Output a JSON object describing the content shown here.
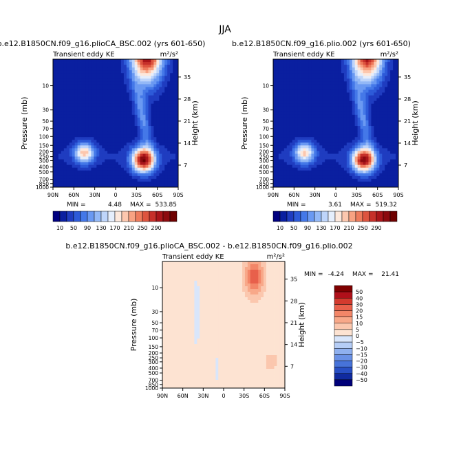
{
  "page_title": "JJA",
  "chart_data": [
    {
      "type": "heatmap",
      "id": "panel1",
      "title": "b.e12.B1850CN.f09_g16.plioCA_BSC.002 (yrs 601-650)",
      "subtitle_left": "Transient eddy KE",
      "units": "m²/s²",
      "xlabel": "",
      "ylabel": "Pressure (mb)",
      "ylabel_right": "Height (km)",
      "x_ticks": [
        "90N",
        "60N",
        "30N",
        "0",
        "30S",
        "60S",
        "90S"
      ],
      "y_ticks": [
        "10",
        "30",
        "50",
        "70",
        "100",
        "150",
        "200",
        "250",
        "300",
        "400",
        "500",
        "700",
        "850",
        "1000"
      ],
      "y_ticks_right": [
        "35",
        "28",
        "21",
        "14",
        "7"
      ],
      "min_label": "MIN =",
      "min_value": "4.48",
      "max_label": "MAX =",
      "max_value": "533.85",
      "features": [
        {
          "lat": -45,
          "p": 2,
          "value": 320,
          "sx": 22,
          "sy": 1.4
        },
        {
          "lat": -40,
          "p": 290,
          "value": 300,
          "sx": 16,
          "sy": 0.55
        },
        {
          "lat": 45,
          "p": 210,
          "value": 175,
          "sx": 14,
          "sy": 0.45
        }
      ]
    },
    {
      "type": "heatmap",
      "id": "panel2",
      "title": "b.e12.B1850CN.f09_g16.plio.002 (yrs 601-650)",
      "subtitle_left": "Transient eddy KE",
      "units": "m²/s²",
      "xlabel": "",
      "ylabel": "Pressure (mb)",
      "ylabel_right": "Height (km)",
      "x_ticks": [
        "90N",
        "60N",
        "30N",
        "0",
        "30S",
        "60S",
        "90S"
      ],
      "y_ticks": [
        "10",
        "30",
        "50",
        "70",
        "100",
        "150",
        "200",
        "250",
        "300",
        "400",
        "500",
        "700",
        "850",
        "1000"
      ],
      "y_ticks_right": [
        "35",
        "28",
        "21",
        "14",
        "7"
      ],
      "min_label": "MIN =",
      "min_value": "3.61",
      "max_label": "MAX =",
      "max_value": "519.32",
      "features": [
        {
          "lat": -45,
          "p": 2,
          "value": 310,
          "sx": 22,
          "sy": 1.4
        },
        {
          "lat": -40,
          "p": 290,
          "value": 290,
          "sx": 16,
          "sy": 0.55
        },
        {
          "lat": 45,
          "p": 210,
          "value": 170,
          "sx": 14,
          "sy": 0.45
        }
      ]
    },
    {
      "type": "heatmap",
      "id": "diff",
      "title": "b.e12.B1850CN.f09_g16.plioCA_BSC.002 - b.e12.B1850CN.f09_g16.plio.002",
      "subtitle_left": "Transient eddy KE",
      "units": "m²/s²",
      "xlabel": "",
      "ylabel": "Pressure (mb)",
      "ylabel_right": "Height (km)",
      "x_ticks": [
        "90N",
        "60N",
        "30N",
        "0",
        "30S",
        "60S",
        "90S"
      ],
      "y_ticks": [
        "10",
        "30",
        "50",
        "70",
        "100",
        "150",
        "200",
        "250",
        "300",
        "400",
        "500",
        "700",
        "850",
        "1000"
      ],
      "y_ticks_right": [
        "35",
        "28",
        "21",
        "14",
        "7"
      ],
      "min_label": "MIN =",
      "min_value": "-4.24",
      "max_label": "MAX =",
      "max_value": "21.41",
      "features": [
        {
          "lat": -45,
          "p": 6,
          "value": 22,
          "sx": 14,
          "sy": 0.9
        },
        {
          "lat": -70,
          "p": 300,
          "value": 6,
          "sx": 12,
          "sy": 0.5
        },
        {
          "lat": 40,
          "p": 30,
          "value": -4,
          "sx": 5,
          "sy": 1.5
        },
        {
          "lat": 10,
          "p": 400,
          "value": -3,
          "sx": 4,
          "sy": 0.6
        }
      ]
    }
  ],
  "colorbar_abs": {
    "labels": [
      "10",
      "50",
      "90",
      "130",
      "170",
      "210",
      "250",
      "290"
    ],
    "colors": [
      "#00007f",
      "#0a1fa0",
      "#1f3cc0",
      "#2d5ad8",
      "#4478e8",
      "#6a99f2",
      "#93b8f6",
      "#bed5fb",
      "#e5eefc",
      "#fde8dc",
      "#fcc7ae",
      "#f8a282",
      "#ee7b5c",
      "#dd543f",
      "#c6302a",
      "#a9151a",
      "#8c0a0f",
      "#6e0000"
    ]
  },
  "colorbar_diff": {
    "labels": [
      "50",
      "40",
      "30",
      "20",
      "15",
      "10",
      "5",
      "0",
      "−5",
      "−10",
      "−15",
      "−20",
      "−30",
      "−40",
      "−50"
    ],
    "colors": [
      "#7f0000",
      "#b0101a",
      "#d33a2e",
      "#e8604b",
      "#f38668",
      "#f8a889",
      "#fbc7ae",
      "#fde3d2",
      "#d9e6fb",
      "#b5cdf6",
      "#8fb0ef",
      "#6a91e6",
      "#4773d9",
      "#284fc4",
      "#102a9f",
      "#000079"
    ]
  }
}
